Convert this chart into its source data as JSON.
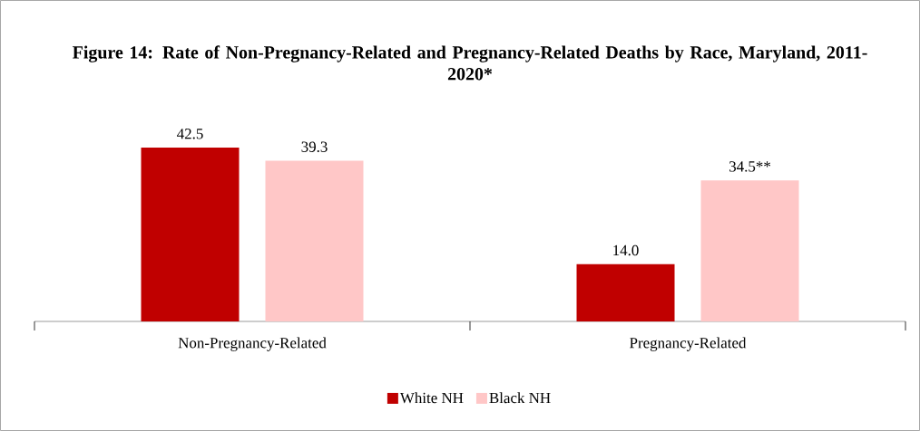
{
  "chart_data": {
    "type": "bar",
    "title": "Figure 14: Rate of Non-Pregnancy-Related and Pregnancy-Related Deaths by Race, Maryland, 2011-2020*",
    "categories": [
      "Non-Pregnancy-Related",
      "Pregnancy-Related"
    ],
    "series": [
      {
        "name": "White NH",
        "color": "#c00000",
        "values": [
          42.5,
          14.0
        ],
        "value_labels": [
          "42.5",
          "14.0"
        ]
      },
      {
        "name": "Black NH",
        "color": "#ffc7c7",
        "values": [
          39.3,
          34.5
        ],
        "value_labels": [
          "39.3",
          "34.5**"
        ]
      }
    ],
    "legend": "bottom"
  }
}
